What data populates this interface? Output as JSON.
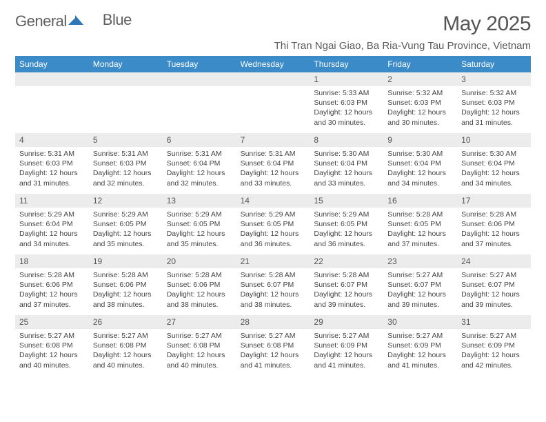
{
  "logo": {
    "text1": "General",
    "text2": "Blue"
  },
  "title": "May 2025",
  "location": "Thi Tran Ngai Giao, Ba Ria-Vung Tau Province, Vietnam",
  "colors": {
    "header_bg": "#3b8bc9",
    "header_text": "#ffffff",
    "daynum_bg": "#ececec",
    "text": "#444444"
  },
  "weekdays": [
    "Sunday",
    "Monday",
    "Tuesday",
    "Wednesday",
    "Thursday",
    "Friday",
    "Saturday"
  ],
  "weeks": [
    [
      {
        "day": "",
        "sunrise": "",
        "sunset": "",
        "daylight": ""
      },
      {
        "day": "",
        "sunrise": "",
        "sunset": "",
        "daylight": ""
      },
      {
        "day": "",
        "sunrise": "",
        "sunset": "",
        "daylight": ""
      },
      {
        "day": "",
        "sunrise": "",
        "sunset": "",
        "daylight": ""
      },
      {
        "day": "1",
        "sunrise": "Sunrise: 5:33 AM",
        "sunset": "Sunset: 6:03 PM",
        "daylight": "Daylight: 12 hours and 30 minutes."
      },
      {
        "day": "2",
        "sunrise": "Sunrise: 5:32 AM",
        "sunset": "Sunset: 6:03 PM",
        "daylight": "Daylight: 12 hours and 30 minutes."
      },
      {
        "day": "3",
        "sunrise": "Sunrise: 5:32 AM",
        "sunset": "Sunset: 6:03 PM",
        "daylight": "Daylight: 12 hours and 31 minutes."
      }
    ],
    [
      {
        "day": "4",
        "sunrise": "Sunrise: 5:31 AM",
        "sunset": "Sunset: 6:03 PM",
        "daylight": "Daylight: 12 hours and 31 minutes."
      },
      {
        "day": "5",
        "sunrise": "Sunrise: 5:31 AM",
        "sunset": "Sunset: 6:03 PM",
        "daylight": "Daylight: 12 hours and 32 minutes."
      },
      {
        "day": "6",
        "sunrise": "Sunrise: 5:31 AM",
        "sunset": "Sunset: 6:04 PM",
        "daylight": "Daylight: 12 hours and 32 minutes."
      },
      {
        "day": "7",
        "sunrise": "Sunrise: 5:31 AM",
        "sunset": "Sunset: 6:04 PM",
        "daylight": "Daylight: 12 hours and 33 minutes."
      },
      {
        "day": "8",
        "sunrise": "Sunrise: 5:30 AM",
        "sunset": "Sunset: 6:04 PM",
        "daylight": "Daylight: 12 hours and 33 minutes."
      },
      {
        "day": "9",
        "sunrise": "Sunrise: 5:30 AM",
        "sunset": "Sunset: 6:04 PM",
        "daylight": "Daylight: 12 hours and 34 minutes."
      },
      {
        "day": "10",
        "sunrise": "Sunrise: 5:30 AM",
        "sunset": "Sunset: 6:04 PM",
        "daylight": "Daylight: 12 hours and 34 minutes."
      }
    ],
    [
      {
        "day": "11",
        "sunrise": "Sunrise: 5:29 AM",
        "sunset": "Sunset: 6:04 PM",
        "daylight": "Daylight: 12 hours and 34 minutes."
      },
      {
        "day": "12",
        "sunrise": "Sunrise: 5:29 AM",
        "sunset": "Sunset: 6:05 PM",
        "daylight": "Daylight: 12 hours and 35 minutes."
      },
      {
        "day": "13",
        "sunrise": "Sunrise: 5:29 AM",
        "sunset": "Sunset: 6:05 PM",
        "daylight": "Daylight: 12 hours and 35 minutes."
      },
      {
        "day": "14",
        "sunrise": "Sunrise: 5:29 AM",
        "sunset": "Sunset: 6:05 PM",
        "daylight": "Daylight: 12 hours and 36 minutes."
      },
      {
        "day": "15",
        "sunrise": "Sunrise: 5:29 AM",
        "sunset": "Sunset: 6:05 PM",
        "daylight": "Daylight: 12 hours and 36 minutes."
      },
      {
        "day": "16",
        "sunrise": "Sunrise: 5:28 AM",
        "sunset": "Sunset: 6:05 PM",
        "daylight": "Daylight: 12 hours and 37 minutes."
      },
      {
        "day": "17",
        "sunrise": "Sunrise: 5:28 AM",
        "sunset": "Sunset: 6:06 PM",
        "daylight": "Daylight: 12 hours and 37 minutes."
      }
    ],
    [
      {
        "day": "18",
        "sunrise": "Sunrise: 5:28 AM",
        "sunset": "Sunset: 6:06 PM",
        "daylight": "Daylight: 12 hours and 37 minutes."
      },
      {
        "day": "19",
        "sunrise": "Sunrise: 5:28 AM",
        "sunset": "Sunset: 6:06 PM",
        "daylight": "Daylight: 12 hours and 38 minutes."
      },
      {
        "day": "20",
        "sunrise": "Sunrise: 5:28 AM",
        "sunset": "Sunset: 6:06 PM",
        "daylight": "Daylight: 12 hours and 38 minutes."
      },
      {
        "day": "21",
        "sunrise": "Sunrise: 5:28 AM",
        "sunset": "Sunset: 6:07 PM",
        "daylight": "Daylight: 12 hours and 38 minutes."
      },
      {
        "day": "22",
        "sunrise": "Sunrise: 5:28 AM",
        "sunset": "Sunset: 6:07 PM",
        "daylight": "Daylight: 12 hours and 39 minutes."
      },
      {
        "day": "23",
        "sunrise": "Sunrise: 5:27 AM",
        "sunset": "Sunset: 6:07 PM",
        "daylight": "Daylight: 12 hours and 39 minutes."
      },
      {
        "day": "24",
        "sunrise": "Sunrise: 5:27 AM",
        "sunset": "Sunset: 6:07 PM",
        "daylight": "Daylight: 12 hours and 39 minutes."
      }
    ],
    [
      {
        "day": "25",
        "sunrise": "Sunrise: 5:27 AM",
        "sunset": "Sunset: 6:08 PM",
        "daylight": "Daylight: 12 hours and 40 minutes."
      },
      {
        "day": "26",
        "sunrise": "Sunrise: 5:27 AM",
        "sunset": "Sunset: 6:08 PM",
        "daylight": "Daylight: 12 hours and 40 minutes."
      },
      {
        "day": "27",
        "sunrise": "Sunrise: 5:27 AM",
        "sunset": "Sunset: 6:08 PM",
        "daylight": "Daylight: 12 hours and 40 minutes."
      },
      {
        "day": "28",
        "sunrise": "Sunrise: 5:27 AM",
        "sunset": "Sunset: 6:08 PM",
        "daylight": "Daylight: 12 hours and 41 minutes."
      },
      {
        "day": "29",
        "sunrise": "Sunrise: 5:27 AM",
        "sunset": "Sunset: 6:09 PM",
        "daylight": "Daylight: 12 hours and 41 minutes."
      },
      {
        "day": "30",
        "sunrise": "Sunrise: 5:27 AM",
        "sunset": "Sunset: 6:09 PM",
        "daylight": "Daylight: 12 hours and 41 minutes."
      },
      {
        "day": "31",
        "sunrise": "Sunrise: 5:27 AM",
        "sunset": "Sunset: 6:09 PM",
        "daylight": "Daylight: 12 hours and 42 minutes."
      }
    ]
  ]
}
